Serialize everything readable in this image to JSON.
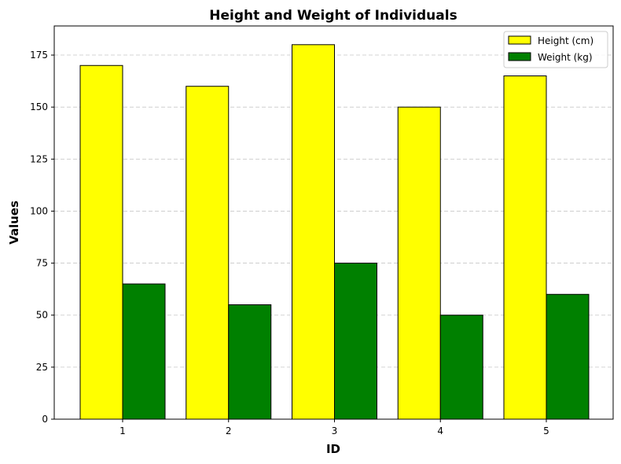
{
  "chart_data": {
    "type": "bar",
    "title": "Height and Weight of Individuals",
    "xlabel": "ID",
    "ylabel": "Values",
    "categories": [
      "1",
      "2",
      "3",
      "4",
      "5"
    ],
    "series": [
      {
        "name": "Height (cm)",
        "values": [
          170,
          160,
          180,
          150,
          165
        ],
        "color": "#ffff00"
      },
      {
        "name": "Weight (kg)",
        "values": [
          65,
          55,
          75,
          50,
          60
        ],
        "color": "#008000"
      }
    ],
    "ylim": [
      0,
      189
    ],
    "yticks": [
      0,
      25,
      50,
      75,
      100,
      125,
      150,
      175
    ],
    "grid": "horizontal dashed",
    "legend_position": "top-right",
    "edge_color": "#000000"
  }
}
